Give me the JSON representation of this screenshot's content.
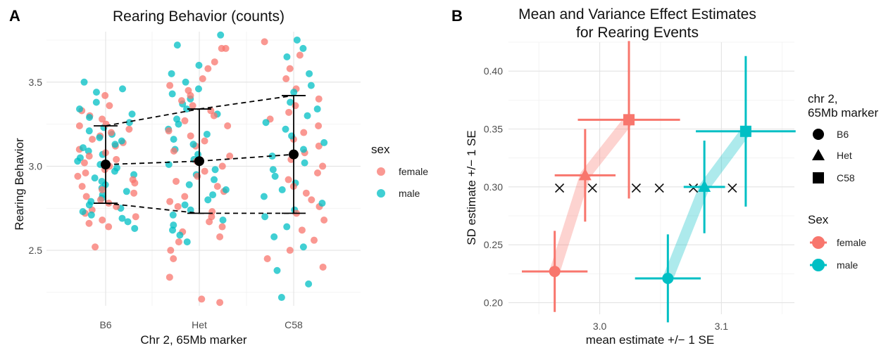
{
  "panels": {
    "a": "A",
    "b": "B"
  },
  "chart_data": [
    {
      "type": "scatter",
      "title": "Rearing Behavior (counts)",
      "xlabel": "Chr 2, 65Mb marker",
      "ylabel": "Rearing Behavior",
      "categories": [
        "B6",
        "Het",
        "C58"
      ],
      "yticks": [
        "2.5",
        "3.0",
        "3.5"
      ],
      "ylim": [
        2.17,
        3.8
      ],
      "legend": {
        "title": "sex",
        "entries": [
          "female",
          "male"
        ],
        "placement": "right"
      },
      "colors": {
        "female": "#F8766D",
        "male": "#00BFC4"
      },
      "summary": [
        {
          "category": "B6",
          "mean": 3.01,
          "lower": 2.78,
          "upper": 3.24
        },
        {
          "category": "Het",
          "mean": 3.03,
          "lower": 2.72,
          "upper": 3.34
        },
        {
          "category": "C58",
          "mean": 3.07,
          "lower": 2.72,
          "upper": 3.42
        }
      ],
      "points": {
        "B6": {
          "female": [
            3.42,
            3.36,
            3.33,
            3.3,
            3.28,
            3.25,
            3.24,
            3.22,
            3.2,
            3.18,
            3.16,
            3.14,
            3.12,
            3.1,
            3.08,
            3.06,
            3.04,
            3.02,
            3.0,
            2.98,
            2.96,
            2.94,
            2.92,
            2.9,
            2.88,
            2.86,
            2.84,
            2.82,
            2.8,
            2.78,
            2.76,
            2.74,
            2.72,
            2.7,
            2.68,
            2.66,
            2.64,
            2.52
          ],
          "male": [
            3.5,
            3.46,
            3.44,
            3.38,
            3.34,
            3.31,
            3.29,
            3.26,
            3.23,
            3.21,
            3.19,
            3.17,
            3.15,
            3.13,
            3.11,
            3.09,
            3.07,
            3.05,
            3.03,
            3.01,
            2.99,
            2.97,
            2.95,
            2.93,
            2.91,
            2.89,
            2.87,
            2.85,
            2.83,
            2.81,
            2.79,
            2.77,
            2.75,
            2.73,
            2.71,
            2.69,
            2.67,
            2.63
          ]
        },
        "Het": {
          "female": [
            3.7,
            3.7,
            3.62,
            3.58,
            3.52,
            3.48,
            3.45,
            3.42,
            3.39,
            3.36,
            3.33,
            3.3,
            3.27,
            3.24,
            3.21,
            3.18,
            3.15,
            3.12,
            3.09,
            3.06,
            3.03,
            3.0,
            2.97,
            2.94,
            2.91,
            2.88,
            2.85,
            2.82,
            2.79,
            2.76,
            2.73,
            2.7,
            2.67,
            2.64,
            2.61,
            2.58,
            2.55,
            2.5,
            2.45,
            2.34,
            2.21,
            2.19
          ],
          "male": [
            3.78,
            3.72,
            3.6,
            3.55,
            3.5,
            3.46,
            3.43,
            3.4,
            3.37,
            3.34,
            3.31,
            3.28,
            3.25,
            3.22,
            3.19,
            3.16,
            3.13,
            3.1,
            3.07,
            3.04,
            3.01,
            2.98,
            2.95,
            2.92,
            2.89,
            2.86,
            2.83,
            2.8,
            2.77,
            2.74,
            2.71,
            2.68,
            2.65,
            2.62,
            2.59,
            2.55
          ]
        },
        "C58": {
          "female": [
            3.74,
            3.66,
            3.58,
            3.52,
            3.46,
            3.4,
            3.36,
            3.32,
            3.28,
            3.24,
            3.2,
            3.16,
            3.12,
            3.08,
            3.04,
            3.0,
            2.96,
            2.92,
            2.88,
            2.84,
            2.8,
            2.76,
            2.72,
            2.68,
            2.62,
            2.56,
            2.5,
            2.45,
            2.4
          ],
          "male": [
            3.75,
            3.7,
            3.65,
            3.55,
            3.48,
            3.44,
            3.38,
            3.34,
            3.3,
            3.26,
            3.22,
            3.18,
            3.14,
            3.1,
            3.06,
            3.02,
            2.98,
            2.94,
            2.9,
            2.86,
            2.82,
            2.78,
            2.74,
            2.7,
            2.64,
            2.58,
            2.52,
            2.38,
            2.3,
            2.22
          ]
        }
      }
    },
    {
      "type": "scatter",
      "title": "Mean and Variance Effect Estimates",
      "subtitle": "for Rearing Events",
      "xlabel": "mean estimate +/− 1 SE",
      "ylabel": "SD estimate +/− 1 SE",
      "xticks": [
        "3.0",
        "3.1"
      ],
      "xtick_values": [
        3.0,
        3.1
      ],
      "yticks": [
        "0.20",
        "0.25",
        "0.30",
        "0.35",
        "0.40"
      ],
      "ytick_values": [
        0.2,
        0.25,
        0.3,
        0.35,
        0.4
      ],
      "xlim": [
        2.925,
        3.16
      ],
      "ylim": [
        0.19,
        0.425
      ],
      "legend_shape": {
        "title_line1": "chr 2,",
        "title_line2": "65Mb marker",
        "entries": [
          "B6",
          "Het",
          "C58"
        ]
      },
      "legend_sex": {
        "title": "Sex",
        "entries": [
          "female",
          "male"
        ]
      },
      "colors": {
        "female": "#F8766D",
        "male": "#00BFC4"
      },
      "series": [
        {
          "name": "female",
          "points": [
            {
              "marker": "B6",
              "x": 2.963,
              "y": 0.227,
              "xse": 0.027,
              "yse": 0.035
            },
            {
              "marker": "Het",
              "x": 2.988,
              "y": 0.31,
              "xse": 0.025,
              "yse": 0.04
            },
            {
              "marker": "C58",
              "x": 3.024,
              "y": 0.358,
              "xse": 0.042,
              "yse": 0.068
            }
          ]
        },
        {
          "name": "male",
          "points": [
            {
              "marker": "B6",
              "x": 3.056,
              "y": 0.221,
              "xse": 0.027,
              "yse": 0.038
            },
            {
              "marker": "Het",
              "x": 3.086,
              "y": 0.3,
              "xse": 0.017,
              "yse": 0.04
            },
            {
              "marker": "C58",
              "x": 3.12,
              "y": 0.348,
              "xse": 0.041,
              "yse": 0.065
            }
          ]
        }
      ],
      "crosses": [
        {
          "x": 2.967,
          "y": 0.299
        },
        {
          "x": 2.994,
          "y": 0.299
        },
        {
          "x": 3.03,
          "y": 0.299
        },
        {
          "x": 3.049,
          "y": 0.299
        },
        {
          "x": 3.077,
          "y": 0.299
        },
        {
          "x": 3.109,
          "y": 0.299
        }
      ]
    }
  ]
}
